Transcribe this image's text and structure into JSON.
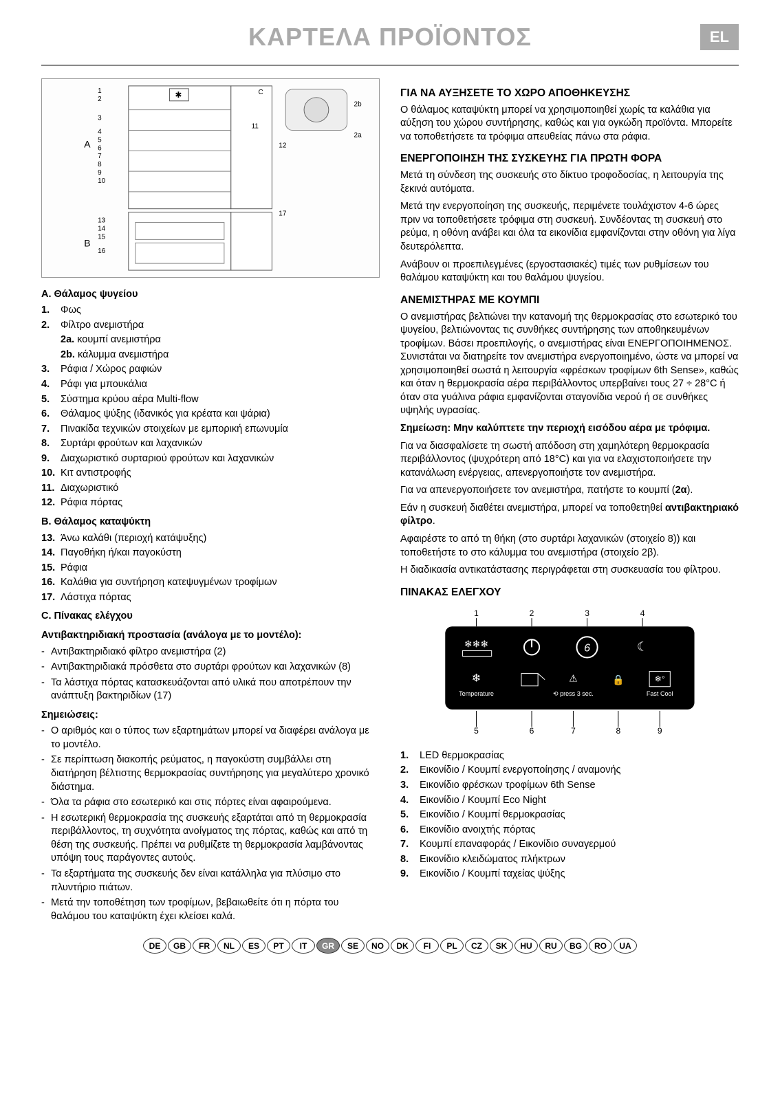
{
  "header": {
    "title": "ΚΑΡΤΕΛΑ ΠΡΟΪΟΝΤΟΣ",
    "lang_badge": "EL"
  },
  "left": {
    "sectionA_head": "A. Θάλαμος ψυγείου",
    "legendA": [
      "Φως",
      "Φίλτρο ανεμιστήρα",
      "Ράφια / Χώρος ραφιών",
      "Ράφι για μπουκάλια",
      "Σύστημα κρύου αέρα Multi-flow",
      "Θάλαμος ψύξης (ιδανικός για κρέατα και ψάρια)",
      "Πινακίδα τεχνικών στοιχείων με εμπορική επωνυμία",
      "Συρτάρι φρούτων και λαχανικών",
      "Διαχωριστικό συρταριού φρούτων και λαχανικών",
      "Κιτ αντιστροφής",
      "Διαχωριστικό",
      "Ράφια πόρτας"
    ],
    "sub2a_label": "2a.",
    "sub2a_text": "κουμπί ανεμιστήρα",
    "sub2b_label": "2b.",
    "sub2b_text": "κάλυμμα ανεμιστήρα",
    "sectionB_head": "B. Θάλαμος καταψύκτη",
    "legendB": [
      "Άνω καλάθι (περιοχή κατάψυξης)",
      "Παγοθήκη ή/και παγοκύστη",
      "Ράφια",
      "Καλάθια για συντήρηση κατεψυγμένων τροφίμων",
      "Λάστιχα πόρτας"
    ],
    "sectionC_head": "C. Πίνακας ελέγχου",
    "antibac_head": "Αντιβακτηριδιακή προστασία (ανάλογα με το μοντέλο):",
    "antibac": [
      "Αντιβακτηριδιακό φίλτρο ανεμιστήρα (2)",
      "Αντιβακτηριδιακά πρόσθετα στο συρτάρι φρούτων και λαχανικών (8)",
      "Τα λάστιχα πόρτας κατασκευάζονται από υλικά που αποτρέπουν την ανάπτυξη βακτηριδίων (17)"
    ],
    "notes_head": "Σημειώσεις:",
    "notes": [
      "Ο αριθμός και ο τύπος των εξαρτημάτων μπορεί να διαφέρει ανάλογα με το μοντέλο.",
      "Σε περίπτωση διακοπής ρεύματος, η παγοκύστη συμβάλλει στη διατήρηση βέλτιστης θερμοκρασίας συντήρησης για μεγαλύτερο χρονικό διάστημα.",
      "Όλα τα ράφια στο εσωτερικό και στις πόρτες είναι αφαιρούμενα.",
      "Η εσωτερική θερμοκρασία της συσκευής εξαρτάται από τη θερμοκρασία περιβάλλοντος, τη συχνότητα ανοίγματος της πόρτας, καθώς και από τη θέση της συσκευής. Πρέπει να ρυθμίζετε τη θερμοκρασία λαμβάνοντας υπόψη τους παράγοντες αυτούς.",
      "Τα εξαρτήματα της συσκευής δεν είναι κατάλληλα για πλύσιμο στο πλυντήριο πιάτων.",
      "Μετά την τοποθέτηση των τροφίμων, βεβαιωθείτε ότι η πόρτα του θαλάμου του καταψύκτη έχει κλείσει καλά."
    ]
  },
  "right": {
    "h_storage": "ΓΙΑ ΝΑ ΑΥΞΗΣΕΤΕ ΤΟ ΧΩΡΟ ΑΠΟΘΗΚΕΥΣΗΣ",
    "p_storage": "Ο θάλαμος καταψύκτη μπορεί να χρησιμοποιηθεί χωρίς τα καλάθια για αύξηση του χώρου συντήρησης, καθώς και για ογκώδη προϊόντα. Μπορείτε να τοποθετήσετε τα τρόφιμα απευθείας πάνω στα ράφια.",
    "h_first": "ΕΝΕΡΓΟΠΟΙΗΣΗ ΤΗΣ ΣΥΣΚΕΥΗΣ ΓΙΑ ΠΡΩΤΗ ΦΟΡΑ",
    "p_first1": "Μετά τη σύνδεση της συσκευής στο δίκτυο τροφοδοσίας, η λειτουργία της ξεκινά αυτόματα.",
    "p_first2": "Μετά την ενεργοποίηση της συσκευής, περιμένετε τουλάχιστον 4-6 ώρες πριν να τοποθετήσετε τρόφιμα στη συσκευή. Συνδέοντας τη συσκευή στο ρεύμα, η οθόνη ανάβει και όλα τα εικονίδια εμφανίζονται στην οθόνη για λίγα δευτερόλεπτα.",
    "p_first3": "Ανάβουν οι προεπιλεγμένες (εργοστασιακές) τιμές των ρυθμίσεων του θαλάμου καταψύκτη και του θαλάμου ψυγείου.",
    "h_fan": "ΑΝΕΜΙΣΤΗΡΑΣ ΜΕ ΚΟΥΜΠΙ",
    "p_fan1": "Ο ανεμιστήρας βελτιώνει την κατανομή της θερμοκρασίας στο εσωτερικό του ψυγείου, βελτιώνοντας τις συνθήκες συντήρησης των αποθηκευμένων τροφίμων. Βάσει προεπιλογής, ο ανεμιστήρας είναι ΕΝΕΡΓΟΠΟΙΗΜΕΝΟΣ. Συνιστάται να διατηρείτε τον ανεμιστήρα ενεργοποιημένο, ώστε να μπορεί να χρησιμοποιηθεί σωστά η λειτουργία «φρέσκων τροφίμων 6th Sense», καθώς και όταν η θερμοκρασία αέρα περιβάλλοντος υπερβαίνει τους 27 ÷ 28°C ή όταν στα γυάλινα ράφια εμφανίζονται σταγονίδια νερού ή σε συνθήκες υψηλής υγρασίας.",
    "p_fan_note": "Σημείωση: Μην καλύπτετε την περιοχή εισόδου αέρα με τρόφιμα.",
    "p_fan2": "Για να διασφαλίσετε τη σωστή απόδοση στη χαμηλότερη θερμοκρασία περιβάλλοντος (ψυχρότερη από 18°C) και για να ελαχιστοποιήσετε την κατανάλωση ενέργειας, απενεργοποιήστε τον ανεμιστήρα.",
    "p_fan3_a": "Για να απενεργοποιήσετε τον ανεμιστήρα, πατήστε το κουμπί (",
    "p_fan3_b": "2α",
    "p_fan3_c": ").",
    "p_fan4_a": "Εάν η συσκευή διαθέτει ανεμιστήρα, μπορεί να τοποθετηθεί ",
    "p_fan4_b": "αντιβακτηριακό φίλτρο",
    "p_fan4_c": ".",
    "p_fan5": "Αφαιρέστε το από τη θήκη (στο συρτάρι λαχανικών (στοιχείο 8)) και τοποθετήστε το στο κάλυμμα του ανεμιστήρα (στοιχείο 2β).",
    "p_fan6": "Η διαδικασία αντικατάστασης περιγράφεται στη συσκευασία του φίλτρου.",
    "h_panel": "ΠΙΝΑΚΑΣ ΕΛΕΓΧΟΥ",
    "controls": [
      "LED θερμοκρασίας",
      "Εικονίδιο / Κουμπί ενεργοποίησης / αναμονής",
      "Εικονίδιο φρέσκων τροφίμων 6th Sense",
      "Εικονίδιο / Κουμπί Eco Night",
      "Εικονίδιο / Κουμπί θερμοκρασίας",
      "Εικονίδιο ανοιχτής πόρτας",
      "Κουμπί επαναφοράς / Εικονίδιο συναγερμού",
      "Εικονίδιο κλειδώματος πλήκτρων",
      "Εικονίδιο / Κουμπί ταχείας ψύξης"
    ]
  },
  "panel_labels": {
    "temp": "Temperature",
    "press": "press 3 sec.",
    "fast": "Fast Cool"
  },
  "langs": [
    "DE",
    "GB",
    "FR",
    "NL",
    "ES",
    "PT",
    "IT",
    "GR",
    "SE",
    "NO",
    "DK",
    "FI",
    "PL",
    "CZ",
    "SK",
    "HU",
    "RU",
    "BG",
    "RO",
    "UA"
  ],
  "active_lang": "GR"
}
